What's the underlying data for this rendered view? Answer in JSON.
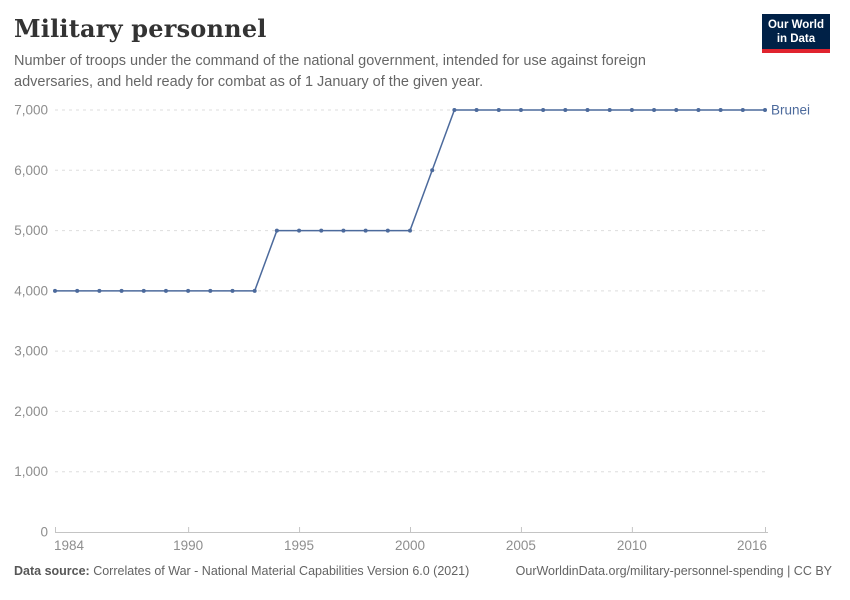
{
  "header": {
    "title": "Military personnel",
    "subtitle": "Number of troops under the command of the national government, intended for use against foreign adversaries, and held ready for combat as of 1 January of the given year."
  },
  "logo": {
    "line1": "Our World",
    "line2": "in Data",
    "bg_color": "#002147",
    "accent_color": "#e0232e"
  },
  "chart_data": {
    "type": "line",
    "title": "Military personnel",
    "entity": "Brunei",
    "x": [
      1984,
      1985,
      1986,
      1987,
      1988,
      1989,
      1990,
      1991,
      1992,
      1993,
      1994,
      1995,
      1996,
      1997,
      1998,
      1999,
      2000,
      2001,
      2002,
      2003,
      2004,
      2005,
      2006,
      2007,
      2008,
      2009,
      2010,
      2011,
      2012,
      2013,
      2014,
      2015,
      2016
    ],
    "series": [
      {
        "name": "Brunei",
        "color": "#4C6A9C",
        "values": [
          4000,
          4000,
          4000,
          4000,
          4000,
          4000,
          4000,
          4000,
          4000,
          4000,
          5000,
          5000,
          5000,
          5000,
          5000,
          5000,
          5000,
          6000,
          7000,
          7000,
          7000,
          7000,
          7000,
          7000,
          7000,
          7000,
          7000,
          7000,
          7000,
          7000,
          7000,
          7000,
          7000
        ]
      }
    ],
    "xlim": [
      1984,
      2016
    ],
    "ylim": [
      0,
      7000
    ],
    "xticks": [
      1984,
      1990,
      1995,
      2000,
      2005,
      2010,
      2016
    ],
    "yticks": [
      {
        "value": 0,
        "label": "0"
      },
      {
        "value": 1000,
        "label": "1,000"
      },
      {
        "value": 2000,
        "label": "2,000"
      },
      {
        "value": 3000,
        "label": "3,000"
      },
      {
        "value": 4000,
        "label": "4,000"
      },
      {
        "value": 5000,
        "label": "5,000"
      },
      {
        "value": 6000,
        "label": "6,000"
      },
      {
        "value": 7000,
        "label": "7,000"
      }
    ],
    "grid": "horizontal-dashed",
    "legend_position": "end-of-line",
    "colors": {
      "grid": "#dddddd",
      "axis": "#c4c4c4",
      "tick_text": "#8e8e8e"
    }
  },
  "footer": {
    "source_label": "Data source:",
    "source_text": " Correlates of War - National Material Capabilities Version 6.0 (2021)",
    "link": "OurWorldinData.org/military-personnel-spending",
    "license": " | CC BY"
  }
}
